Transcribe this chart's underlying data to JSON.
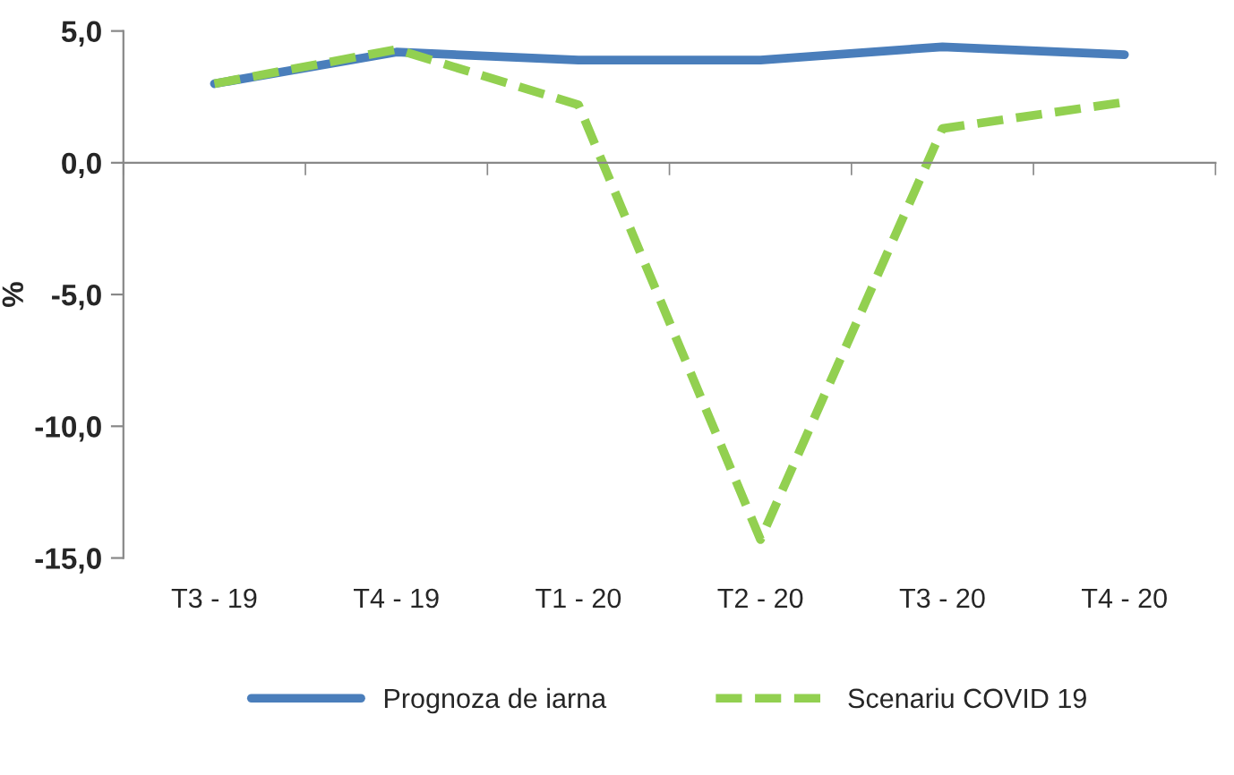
{
  "chart_data": {
    "type": "line",
    "ylabel": "%",
    "categories": [
      "T3 - 19",
      "T4 - 19",
      "T1 - 20",
      "T2 - 20",
      "T3 - 20",
      "T4 - 20"
    ],
    "series": [
      {
        "name": "Prognoza de iarna",
        "color": "#4a7ebb",
        "line_style": "solid",
        "values": [
          3.0,
          4.2,
          3.9,
          3.9,
          4.4,
          4.1
        ]
      },
      {
        "name": "Scenariu COVID 19",
        "color": "#92d050",
        "line_style": "dashed",
        "values": [
          3.0,
          4.3,
          2.2,
          -14.3,
          1.3,
          2.3
        ]
      }
    ],
    "ylim": [
      -15,
      5
    ],
    "yticks": [
      {
        "value": -15,
        "label": "-15,0"
      },
      {
        "value": -10,
        "label": "-10,0"
      },
      {
        "value": -5,
        "label": "-5,0"
      },
      {
        "value": 0,
        "label": "0,0"
      },
      {
        "value": 5,
        "label": "5,0"
      }
    ],
    "legend": "bottom",
    "marker": "none"
  }
}
